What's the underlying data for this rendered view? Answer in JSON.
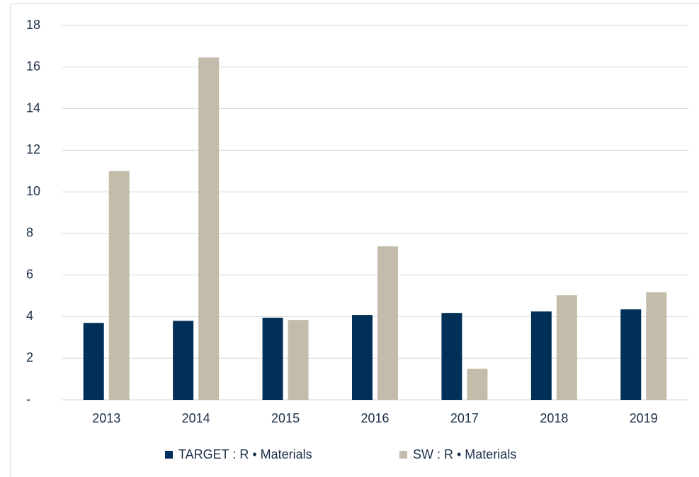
{
  "chart_data": {
    "type": "bar",
    "categories": [
      "2013",
      "2014",
      "2015",
      "2016",
      "2017",
      "2018",
      "2019"
    ],
    "series": [
      {
        "name": "TARGET : R • Materials",
        "color": "#003057",
        "values": [
          3.7,
          3.8,
          3.95,
          4.08,
          4.18,
          4.25,
          4.35
        ]
      },
      {
        "name": "SW : R • Materials",
        "color": "#c4bcaa",
        "values": [
          11.0,
          16.46,
          3.84,
          7.38,
          1.5,
          5.03,
          5.17
        ]
      }
    ],
    "ylim": [
      0,
      18
    ],
    "yticks": [
      {
        "value": 0,
        "label": "-"
      },
      2,
      4,
      6,
      8,
      10,
      12,
      14,
      16,
      18
    ],
    "grid": true,
    "legend": "bottom"
  }
}
